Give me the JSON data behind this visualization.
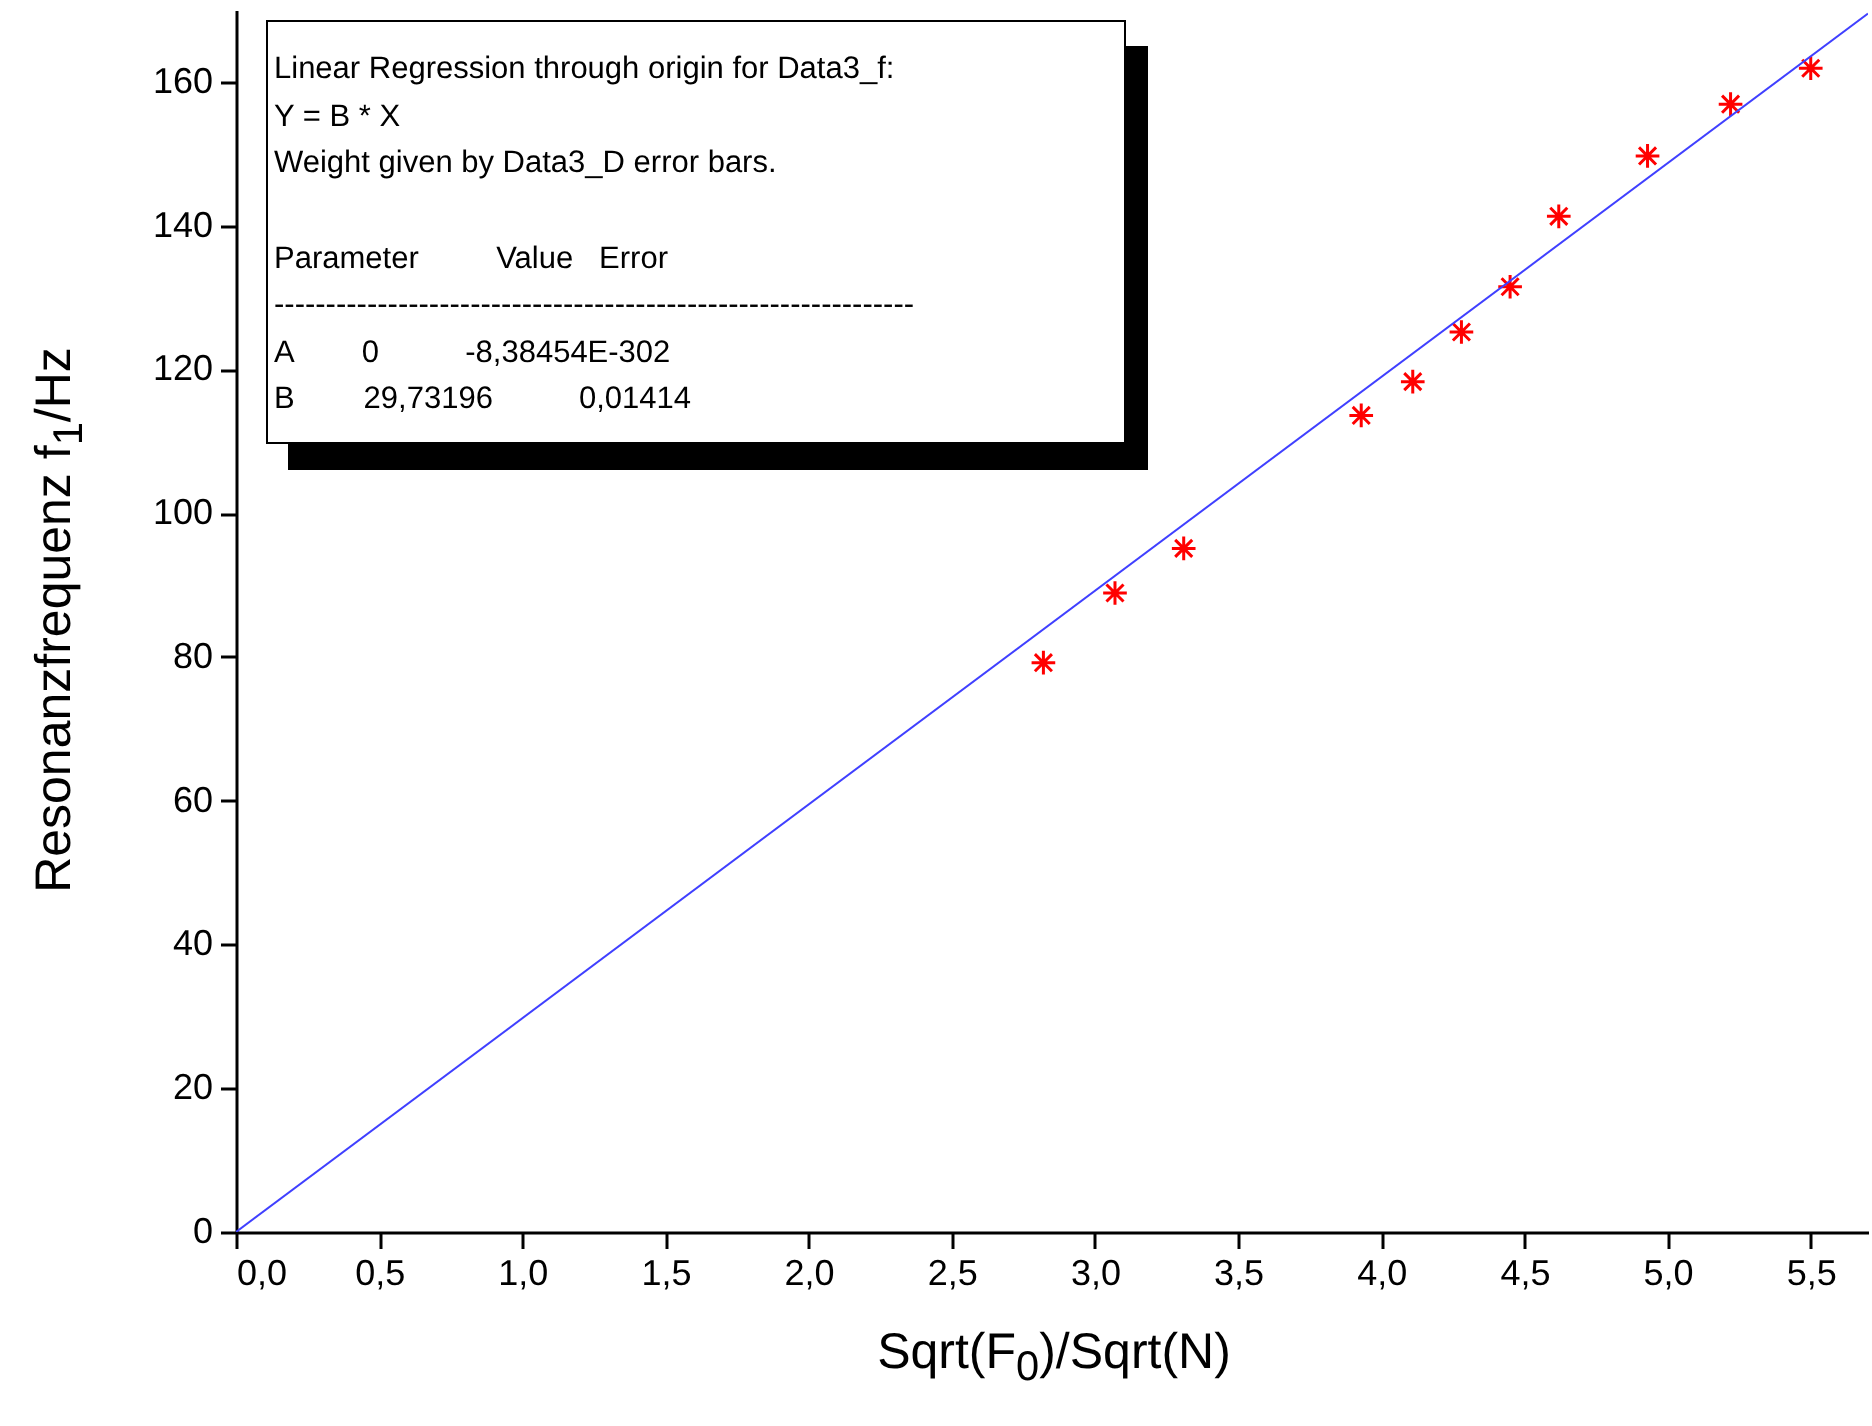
{
  "chart_data": {
    "type": "scatter",
    "xlabel": "Sqrt(F$_{0}$)/Sqrt(N)",
    "ylabel": "Resonanzfrequenz f$_{1}$/Hz",
    "annotations": [
      "Linear Regression through origin for Data3_f:",
      "Y = B * X",
      "Weight given by Data3_D error bars.",
      "Parameter         Value   Error",
      "--------------------------------------------------------------",
      "A        0          -8,38454E-302",
      "B        29,73196          0,01414"
    ],
    "xlim": [
      0,
      5.7
    ],
    "ylim": [
      0,
      170
    ],
    "xticks": [
      {
        "value": 0,
        "label": "0,0"
      },
      {
        "value": 0.5,
        "label": "0,5"
      },
      {
        "value": 1,
        "label": "1,0"
      },
      {
        "value": 1.5,
        "label": "1,5"
      },
      {
        "value": 2,
        "label": "2,0"
      },
      {
        "value": 2.5,
        "label": "2,5"
      },
      {
        "value": 3,
        "label": "3,0"
      },
      {
        "value": 3.5,
        "label": "3,5"
      },
      {
        "value": 4,
        "label": "4,0"
      },
      {
        "value": 4.5,
        "label": "4,5"
      },
      {
        "value": 5,
        "label": "5,0"
      },
      {
        "value": 5.5,
        "label": "5,5"
      }
    ],
    "yticks": [
      0,
      20,
      40,
      60,
      80,
      100,
      120,
      140,
      160
    ],
    "grid": false,
    "series": [
      {
        "marker": "cross",
        "color": "#ff0000",
        "x": [
          2.82,
          3.07,
          3.31,
          3.93,
          4.11,
          4.28,
          4.45,
          4.62,
          4.93,
          5.22,
          5.5
        ],
        "values": [
          79.2,
          88.9,
          95.1,
          113.6,
          118.3,
          125.2,
          131.5,
          141.3,
          149.7,
          156.9,
          161.9
        ]
      },
      {
        "type": "line",
        "color": "#4040ff",
        "x": [
          0,
          5.7
        ],
        "values": [
          0,
          169.5
        ]
      }
    ]
  }
}
